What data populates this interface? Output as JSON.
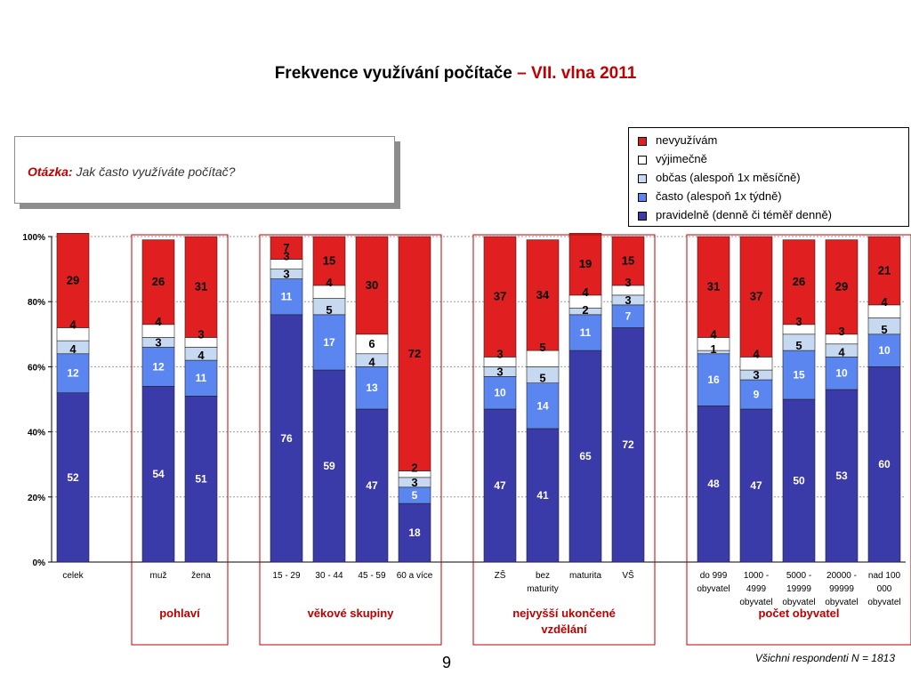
{
  "page": {
    "title_main": "Frekvence využívání počítače",
    "title_accent": "– VII. vlna 2011",
    "question_label": "Otázka:",
    "question_text": "Jak často využíváte počítač?",
    "slide_number": "9",
    "footnote": "Všichni respondenti N = 1813"
  },
  "legend": [
    {
      "label": "nevyužívám",
      "color": "#e02020"
    },
    {
      "label": "výjimečně",
      "color": "#ffffff"
    },
    {
      "label": "občas (alespoň 1x měsíčně)",
      "color": "#c6d9f1"
    },
    {
      "label": "často (alespoň 1x týdně)",
      "color": "#5b86f0"
    },
    {
      "label": "pravidelně (denně či téměř denně)",
      "color": "#3a3aa8"
    }
  ],
  "chart_data": {
    "type": "bar",
    "stacked": true,
    "percent": true,
    "ylim": [
      0,
      100
    ],
    "yticks": [
      "0%",
      "20%",
      "40%",
      "60%",
      "80%",
      "100%"
    ],
    "categories": [
      [
        "celek"
      ],
      [
        "muž"
      ],
      [
        "žena"
      ],
      [
        "15 - 29"
      ],
      [
        "30 - 44"
      ],
      [
        "45 - 59"
      ],
      [
        "60 a více"
      ],
      [
        "ZŠ"
      ],
      [
        "bez",
        "maturity"
      ],
      [
        "maturita"
      ],
      [
        "VŠ"
      ],
      [
        "do 999",
        "obyvatel"
      ],
      [
        "1000 -",
        "4999",
        "obyvatel"
      ],
      [
        "5000 -",
        "19999",
        "obyvatel"
      ],
      [
        "20000 -",
        "99999",
        "obyvatel"
      ],
      [
        "nad 100",
        "000",
        "obyvatel"
      ]
    ],
    "series": [
      {
        "name": "pravidelně (denně či téměř denně)",
        "color": "#3a3aa8",
        "values": [
          52,
          54,
          51,
          76,
          59,
          47,
          18,
          47,
          41,
          65,
          72,
          48,
          47,
          50,
          53,
          60
        ]
      },
      {
        "name": "často (alespoň 1x týdně)",
        "color": "#5b86f0",
        "values": [
          12,
          12,
          11,
          11,
          17,
          13,
          5,
          10,
          14,
          11,
          7,
          16,
          9,
          15,
          10,
          10
        ]
      },
      {
        "name": "občas (alespoň 1x měsíčně)",
        "color": "#c6d9f1",
        "values": [
          4,
          3,
          4,
          3,
          5,
          4,
          3,
          3,
          5,
          2,
          3,
          1,
          3,
          5,
          4,
          5
        ]
      },
      {
        "name": "výjimečně",
        "color": "#ffffff",
        "values": [
          4,
          4,
          3,
          3,
          4,
          6,
          2,
          3,
          5,
          4,
          3,
          4,
          4,
          3,
          3,
          4
        ]
      },
      {
        "name": "nevyužívám",
        "color": "#e02020",
        "values": [
          29,
          26,
          31,
          7,
          15,
          30,
          72,
          37,
          34,
          19,
          15,
          31,
          37,
          26,
          29,
          21
        ]
      }
    ],
    "groups": [
      {
        "label": [
          "pohlaví"
        ],
        "from": 1,
        "to": 2
      },
      {
        "label": [
          "věkové skupiny"
        ],
        "from": 3,
        "to": 6
      },
      {
        "label": [
          "nejvyšší ukončené",
          "vzdělání"
        ],
        "from": 7,
        "to": 10
      },
      {
        "label": [
          "počet obyvatel"
        ],
        "from": 11,
        "to": 15
      }
    ]
  }
}
